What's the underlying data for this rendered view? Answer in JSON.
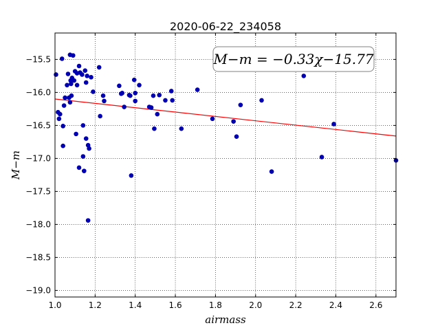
{
  "chart_data": {
    "type": "scatter",
    "title": "2020-06-22_234058",
    "xlabel": "airmass",
    "ylabel": "M−m",
    "xlim": [
      1.0,
      2.7
    ],
    "ylim": [
      -19.1,
      -15.1
    ],
    "y_inverted": true,
    "grid": true,
    "xticks": [
      1.0,
      1.2,
      1.4,
      1.6,
      1.8,
      2.0,
      2.2,
      2.4,
      2.6
    ],
    "xtick_labels": [
      "1.0",
      "1.2",
      "1.4",
      "1.6",
      "1.8",
      "2.0",
      "2.2",
      "2.4",
      "2.6"
    ],
    "yticks": [
      -15.5,
      -16.0,
      -16.5,
      -17.0,
      -17.5,
      -18.0,
      -18.5,
      -19.0
    ],
    "ytick_labels": [
      "−15.5",
      "−16.0",
      "−16.5",
      "−17.0",
      "−17.5",
      "−18.0",
      "−18.5",
      "−19.0"
    ],
    "annotation": "M−m = −0.33χ−15.77",
    "annotation_position": "top-right",
    "point_color": "#0000b0",
    "fit_color": "#ff0000",
    "fit_line": {
      "slope": -0.33,
      "intercept": -15.77
    },
    "points": [
      [
        1.005,
        -15.73
      ],
      [
        1.015,
        -16.3
      ],
      [
        1.02,
        -16.4
      ],
      [
        1.025,
        -16.33
      ],
      [
        1.035,
        -15.49
      ],
      [
        1.04,
        -16.51
      ],
      [
        1.04,
        -16.81
      ],
      [
        1.045,
        -16.2
      ],
      [
        1.05,
        -16.08
      ],
      [
        1.06,
        -15.89
      ],
      [
        1.065,
        -15.72
      ],
      [
        1.07,
        -16.08
      ],
      [
        1.075,
        -16.15
      ],
      [
        1.075,
        -15.43
      ],
      [
        1.078,
        -15.82
      ],
      [
        1.08,
        -15.87
      ],
      [
        1.082,
        -16.05
      ],
      [
        1.085,
        -15.78
      ],
      [
        1.09,
        -15.44
      ],
      [
        1.095,
        -15.82
      ],
      [
        1.1,
        -15.68
      ],
      [
        1.105,
        -16.63
      ],
      [
        1.11,
        -15.71
      ],
      [
        1.11,
        -15.89
      ],
      [
        1.12,
        -15.6
      ],
      [
        1.12,
        -17.14
      ],
      [
        1.125,
        -15.7
      ],
      [
        1.135,
        -15.73
      ],
      [
        1.14,
        -16.5
      ],
      [
        1.14,
        -16.97
      ],
      [
        1.145,
        -17.19
      ],
      [
        1.15,
        -15.67
      ],
      [
        1.155,
        -15.85
      ],
      [
        1.155,
        -16.7
      ],
      [
        1.16,
        -15.75
      ],
      [
        1.165,
        -16.8
      ],
      [
        1.165,
        -17.94
      ],
      [
        1.17,
        -16.85
      ],
      [
        1.18,
        -15.77
      ],
      [
        1.19,
        -15.99
      ],
      [
        1.22,
        -15.62
      ],
      [
        1.225,
        -16.36
      ],
      [
        1.24,
        -16.05
      ],
      [
        1.245,
        -16.13
      ],
      [
        1.32,
        -15.9
      ],
      [
        1.33,
        -16.02
      ],
      [
        1.335,
        -16.01
      ],
      [
        1.345,
        -16.22
      ],
      [
        1.37,
        -16.04
      ],
      [
        1.375,
        -16.05
      ],
      [
        1.38,
        -17.26
      ],
      [
        1.395,
        -15.81
      ],
      [
        1.4,
        -16.01
      ],
      [
        1.4,
        -16.13
      ],
      [
        1.42,
        -15.89
      ],
      [
        1.47,
        -16.22
      ],
      [
        1.48,
        -16.23
      ],
      [
        1.49,
        -16.05
      ],
      [
        1.495,
        -16.55
      ],
      [
        1.51,
        -16.33
      ],
      [
        1.52,
        -16.04
      ],
      [
        1.55,
        -16.12
      ],
      [
        1.58,
        -15.98
      ],
      [
        1.585,
        -16.12
      ],
      [
        1.63,
        -16.55
      ],
      [
        1.71,
        -15.96
      ],
      [
        1.785,
        -16.4
      ],
      [
        1.89,
        -16.44
      ],
      [
        1.905,
        -16.67
      ],
      [
        1.925,
        -16.19
      ],
      [
        2.03,
        -16.12
      ],
      [
        2.08,
        -17.2
      ],
      [
        2.24,
        -15.75
      ],
      [
        2.33,
        -16.98
      ],
      [
        2.39,
        -16.48
      ],
      [
        2.7,
        -17.03
      ]
    ]
  }
}
